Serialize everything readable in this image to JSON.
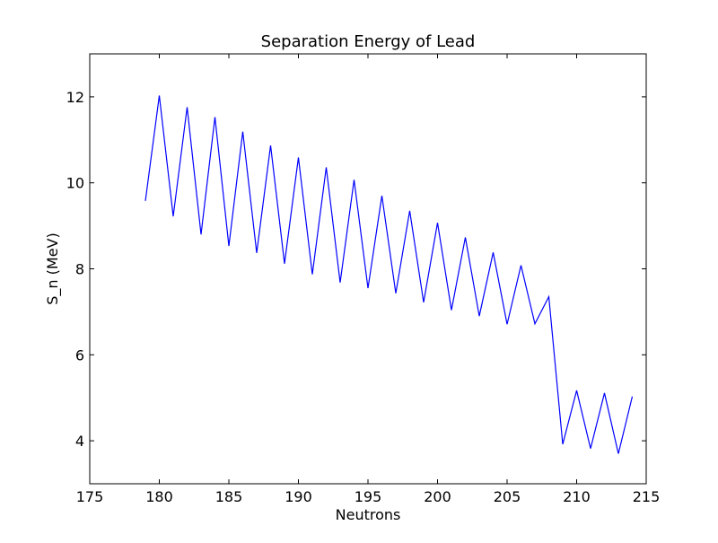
{
  "chart_data": {
    "type": "line",
    "title": "Separation Energy of Lead",
    "xlabel": "Neutrons",
    "ylabel": "S_n (MeV)",
    "xlim": [
      175,
      215
    ],
    "ylim": [
      3,
      13
    ],
    "xticks": [
      175,
      180,
      185,
      190,
      195,
      200,
      205,
      210,
      215
    ],
    "yticks": [
      4,
      6,
      8,
      10,
      12
    ],
    "xtick_labels": [
      "175",
      "180",
      "185",
      "190",
      "195",
      "200",
      "205",
      "210",
      "215"
    ],
    "ytick_labels": [
      "4",
      "6",
      "8",
      "10",
      "12"
    ],
    "grid": false,
    "line_color": "#0000ff",
    "series": [
      {
        "x": [
          179,
          180,
          181,
          182,
          183,
          184,
          185,
          186,
          187,
          188,
          189,
          190,
          191,
          192,
          193,
          194,
          195,
          196,
          197,
          198,
          199,
          200,
          201,
          202,
          203,
          204,
          205,
          206,
          207,
          208,
          209,
          210,
          211,
          212,
          213,
          214
        ],
        "values": [
          9.58,
          12.03,
          9.22,
          11.76,
          8.8,
          11.53,
          8.53,
          11.19,
          8.37,
          10.87,
          8.12,
          10.59,
          7.87,
          10.36,
          7.68,
          10.07,
          7.55,
          9.7,
          7.43,
          9.35,
          7.22,
          9.07,
          7.04,
          8.73,
          6.9,
          8.38,
          6.71,
          8.08,
          6.72,
          7.35,
          3.92,
          5.17,
          3.82,
          5.11,
          3.7,
          5.03
        ]
      }
    ]
  }
}
